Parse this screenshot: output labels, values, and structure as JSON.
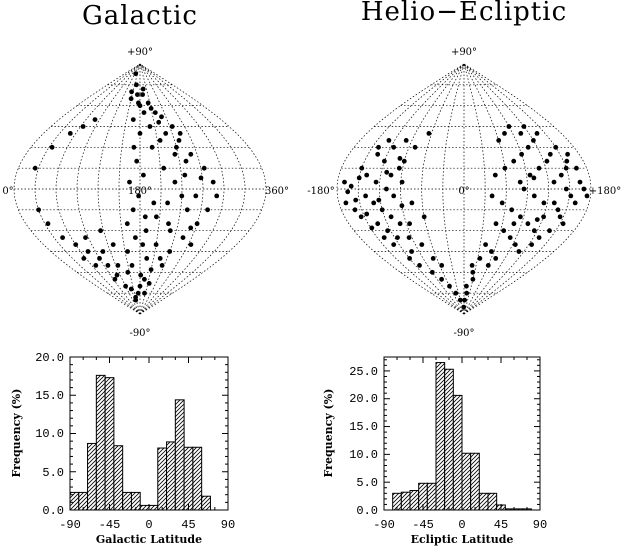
{
  "colors": {
    "ink": "#000000",
    "background": "#ffffff"
  },
  "chart_data": [
    {
      "type": "scatter",
      "projection": "sinusoidal",
      "title": "Galactic",
      "grid": true,
      "x_labels": {
        "left": "0°",
        "center": "180°",
        "right": "360°"
      },
      "y_labels": {
        "top": "+90°",
        "bottom": "-90°"
      },
      "xlim": [
        0,
        360
      ],
      "ylim": [
        -90,
        90
      ],
      "marker": "filled-circle",
      "points": [
        [
          130,
          83
        ],
        [
          160,
          75
        ],
        [
          145,
          70
        ],
        [
          190,
          68
        ],
        [
          175,
          62
        ],
        [
          210,
          58
        ],
        [
          230,
          52
        ],
        [
          245,
          45
        ],
        [
          255,
          40
        ],
        [
          200,
          45
        ],
        [
          180,
          40
        ],
        [
          165,
          50
        ],
        [
          215,
          35
        ],
        [
          240,
          30
        ],
        [
          260,
          25
        ],
        [
          275,
          15
        ],
        [
          285,
          5
        ],
        [
          290,
          -5
        ],
        [
          280,
          -15
        ],
        [
          270,
          -25
        ],
        [
          255,
          -35
        ],
        [
          240,
          -45
        ],
        [
          225,
          -50
        ],
        [
          210,
          -58
        ],
        [
          195,
          -65
        ],
        [
          180,
          -70
        ],
        [
          170,
          -75
        ],
        [
          150,
          -78
        ],
        [
          140,
          -72
        ],
        [
          120,
          -70
        ],
        [
          110,
          -62
        ],
        [
          100,
          -55
        ],
        [
          90,
          -50
        ],
        [
          75,
          -45
        ],
        [
          60,
          -40
        ],
        [
          45,
          -35
        ],
        [
          35,
          -25
        ],
        [
          30,
          -15
        ],
        [
          25,
          15
        ],
        [
          35,
          30
        ],
        [
          50,
          40
        ],
        [
          65,
          45
        ],
        [
          80,
          50
        ],
        [
          175,
          20
        ],
        [
          185,
          10
        ],
        [
          178,
          -5
        ],
        [
          170,
          -15
        ],
        [
          160,
          -25
        ],
        [
          190,
          -30
        ],
        [
          205,
          -20
        ],
        [
          220,
          -10
        ],
        [
          230,
          5
        ],
        [
          245,
          10
        ],
        [
          250,
          20
        ],
        [
          235,
          25
        ],
        [
          215,
          15
        ],
        [
          200,
          30
        ],
        [
          190,
          55
        ],
        [
          205,
          62
        ],
        [
          220,
          48
        ],
        [
          170,
          30
        ],
        [
          185,
          -40
        ],
        [
          195,
          -50
        ],
        [
          130,
          -40
        ],
        [
          115,
          -30
        ],
        [
          95,
          -65
        ],
        [
          145,
          -60
        ],
        [
          160,
          -55
        ],
        [
          210,
          -40
        ],
        [
          230,
          -30
        ],
        [
          250,
          -15
        ],
        [
          260,
          -5
        ],
        [
          268,
          8
        ],
        [
          240,
          -5
        ],
        [
          225,
          -25
        ],
        [
          200,
          -10
        ],
        [
          165,
          5
        ],
        [
          155,
          -45
        ],
        [
          125,
          -55
        ],
        [
          105,
          -45
        ],
        [
          85,
          -35
        ],
        [
          70,
          -55
        ],
        [
          55,
          -50
        ],
        [
          145,
          -80
        ],
        [
          205,
          -75
        ],
        [
          215,
          -68
        ],
        [
          235,
          -55
        ],
        [
          180,
          60
        ],
        [
          195,
          72
        ],
        [
          170,
          68
        ],
        [
          150,
          65
        ],
        [
          228,
          40
        ],
        [
          218,
          55
        ],
        [
          248,
          35
        ],
        [
          262,
          -28
        ],
        [
          275,
          -40
        ],
        [
          182,
          -62
        ],
        [
          188,
          -20
        ],
        [
          172,
          -35
        ]
      ]
    },
    {
      "type": "scatter",
      "projection": "sinusoidal",
      "title": "Helio−Ecliptic",
      "grid": true,
      "x_labels": {
        "left": "-180°",
        "center": "0°",
        "right": "+180°"
      },
      "y_labels": {
        "top": "+90°",
        "bottom": "-90°"
      },
      "xlim": [
        -180,
        180
      ],
      "ylim": [
        -90,
        90
      ],
      "marker": "filled-circle",
      "points": [
        [
          -170,
          5
        ],
        [
          -160,
          2
        ],
        [
          -150,
          8
        ],
        [
          -140,
          -5
        ],
        [
          -130,
          -10
        ],
        [
          -120,
          -15
        ],
        [
          -110,
          -20
        ],
        [
          -100,
          -25
        ],
        [
          -155,
          -8
        ],
        [
          -145,
          -18
        ],
        [
          -135,
          -25
        ],
        [
          -125,
          -30
        ],
        [
          -115,
          -35
        ],
        [
          -105,
          10
        ],
        [
          -95,
          15
        ],
        [
          -120,
          20
        ],
        [
          -135,
          25
        ],
        [
          -150,
          15
        ],
        [
          -165,
          -2
        ],
        [
          -100,
          -5
        ],
        [
          -90,
          -12
        ],
        [
          -110,
          0
        ],
        [
          -125,
          5
        ],
        [
          -140,
          10
        ],
        [
          -155,
          -20
        ],
        [
          -130,
          -40
        ],
        [
          -105,
          -45
        ],
        [
          -95,
          -35
        ],
        [
          -85,
          -25
        ],
        [
          -115,
          30
        ],
        [
          -100,
          35
        ],
        [
          -130,
          35
        ],
        [
          -140,
          30
        ],
        [
          -120,
          -50
        ],
        [
          -110,
          -55
        ],
        [
          -90,
          -60
        ],
        [
          -75,
          -65
        ],
        [
          -60,
          -70
        ],
        [
          -45,
          -75
        ],
        [
          -30,
          -80
        ],
        [
          -65,
          40
        ],
        [
          -80,
          30
        ],
        [
          -90,
          20
        ],
        [
          -75,
          -10
        ],
        [
          -60,
          -20
        ],
        [
          -170,
          -10
        ],
        [
          -160,
          -15
        ],
        [
          -148,
          -28
        ],
        [
          -138,
          -35
        ],
        [
          -122,
          -8
        ],
        [
          -112,
          12
        ],
        [
          -98,
          22
        ],
        [
          -88,
          5
        ],
        [
          -78,
          -40
        ],
        [
          -68,
          -50
        ],
        [
          -55,
          -55
        ],
        [
          40,
          -5
        ],
        [
          55,
          -10
        ],
        [
          70,
          -15
        ],
        [
          85,
          -20
        ],
        [
          100,
          -25
        ],
        [
          115,
          -30
        ],
        [
          130,
          -35
        ],
        [
          145,
          -20
        ],
        [
          160,
          -10
        ],
        [
          170,
          0
        ],
        [
          45,
          10
        ],
        [
          60,
          15
        ],
        [
          75,
          20
        ],
        [
          90,
          25
        ],
        [
          105,
          30
        ],
        [
          120,
          35
        ],
        [
          135,
          25
        ],
        [
          150,
          15
        ],
        [
          165,
          5
        ],
        [
          50,
          -25
        ],
        [
          65,
          -30
        ],
        [
          80,
          -35
        ],
        [
          95,
          -40
        ],
        [
          110,
          -45
        ],
        [
          125,
          -40
        ],
        [
          140,
          -30
        ],
        [
          155,
          -25
        ],
        [
          100,
          -5
        ],
        [
          115,
          -10
        ],
        [
          130,
          -10
        ],
        [
          145,
          0
        ],
        [
          80,
          5
        ],
        [
          95,
          10
        ],
        [
          110,
          15
        ],
        [
          125,
          20
        ],
        [
          140,
          10
        ],
        [
          155,
          20
        ],
        [
          60,
          35
        ],
        [
          75,
          40
        ],
        [
          90,
          45
        ],
        [
          105,
          40
        ],
        [
          120,
          45
        ],
        [
          135,
          40
        ],
        [
          150,
          30
        ],
        [
          165,
          15
        ],
        [
          175,
          -5
        ],
        [
          40,
          -40
        ],
        [
          55,
          -45
        ],
        [
          70,
          -50
        ],
        [
          20,
          -55
        ],
        [
          30,
          -65
        ],
        [
          10,
          -70
        ],
        [
          5,
          -80
        ],
        [
          -5,
          -85
        ],
        [
          15,
          -75
        ],
        [
          25,
          -60
        ],
        [
          35,
          -50
        ],
        [
          60,
          -55
        ],
        [
          85,
          0
        ],
        [
          100,
          8
        ],
        [
          120,
          -20
        ],
        [
          138,
          -15
        ],
        [
          152,
          -5
        ],
        [
          162,
          25
        ],
        [
          112,
          -22
        ],
        [
          128,
          5
        ],
        [
          78,
          -25
        ]
      ]
    },
    {
      "type": "bar",
      "style": "hatched-histogram",
      "xlabel": "Galactic Latitude",
      "ylabel": "Frequency (%)",
      "xlim": [
        -90,
        90
      ],
      "ylim": [
        0,
        20
      ],
      "xticks": [
        "-90",
        "-45",
        "0",
        "45",
        "90"
      ],
      "yticks": [
        "0.0",
        "5.0",
        "10.0",
        "15.0",
        "20.0"
      ],
      "bin_width": 10,
      "bins_start": [
        -90,
        -80,
        -70,
        -60,
        -50,
        -40,
        -30,
        -20,
        -10,
        0,
        10,
        20,
        30,
        40,
        50,
        60,
        70,
        80
      ],
      "values": [
        2.3,
        2.3,
        8.7,
        17.6,
        17.3,
        8.4,
        2.3,
        2.3,
        0.6,
        0.6,
        8.1,
        8.9,
        14.4,
        8.2,
        8.2,
        1.8,
        0,
        0
      ]
    },
    {
      "type": "bar",
      "style": "hatched-histogram",
      "xlabel": "Ecliptic Latitude",
      "ylabel": "Frequency (%)",
      "xlim": [
        -90,
        90
      ],
      "ylim": [
        0,
        27.5
      ],
      "xticks": [
        "-90",
        "-45",
        "0",
        "45",
        "90"
      ],
      "yticks": [
        "0.0",
        "5.0",
        "10.0",
        "15.0",
        "20.0",
        "25.0"
      ],
      "bin_width": 10,
      "bins_start": [
        -90,
        -80,
        -70,
        -60,
        -50,
        -40,
        -30,
        -20,
        -10,
        0,
        10,
        20,
        30,
        40,
        50,
        60,
        70,
        80
      ],
      "values": [
        0,
        3.0,
        3.2,
        3.5,
        4.8,
        4.8,
        26.5,
        25.3,
        20.6,
        10.2,
        10.2,
        3.0,
        3.0,
        0.9,
        0.2,
        0.2,
        0.2,
        0
      ]
    }
  ]
}
